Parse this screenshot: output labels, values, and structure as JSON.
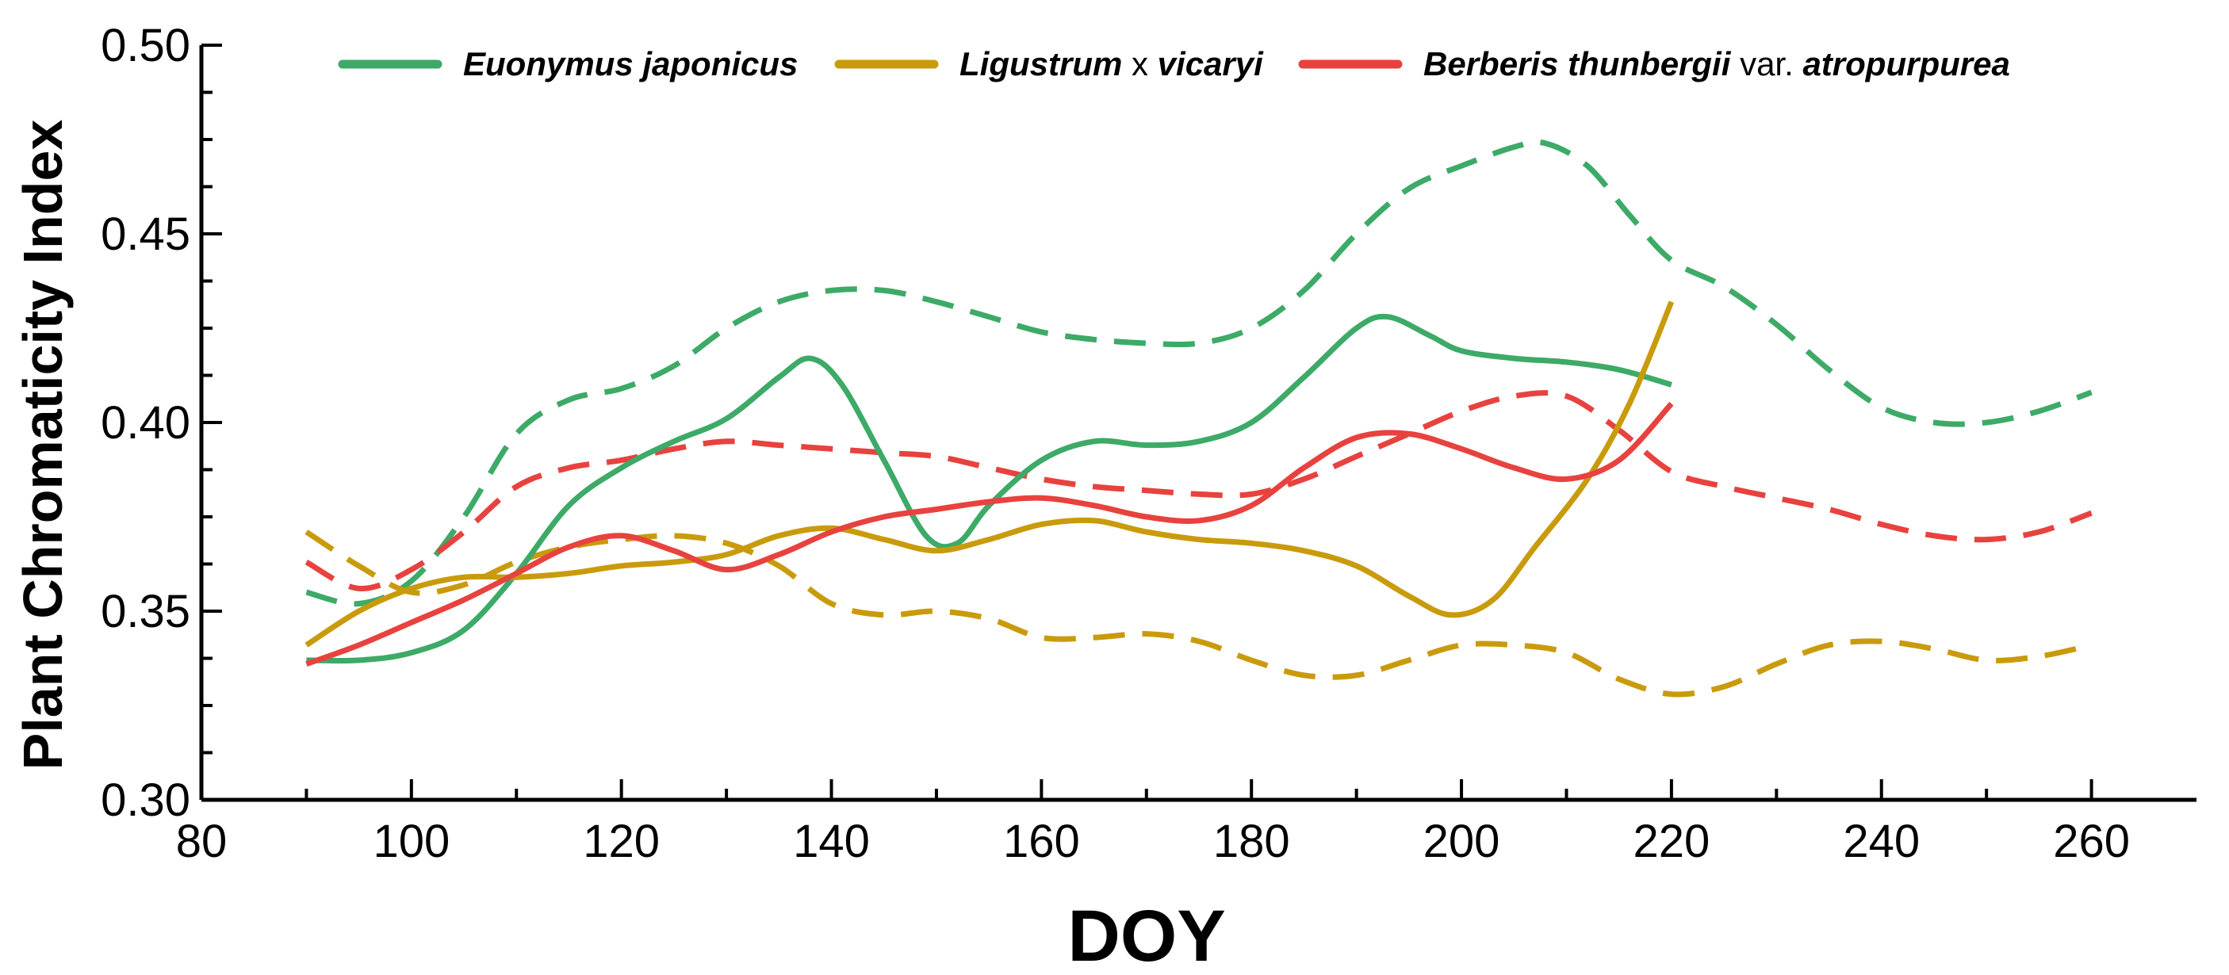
{
  "chart_data": {
    "type": "line",
    "title": "",
    "xlabel": "DOY",
    "ylabel": "Plant Chromaticity Index",
    "xlim": [
      80,
      270
    ],
    "ylim": [
      0.3,
      0.5
    ],
    "xticks": [
      80,
      100,
      120,
      140,
      160,
      180,
      200,
      220,
      240,
      260
    ],
    "xtick_labels": [
      "80",
      "100",
      "120",
      "140",
      "160",
      "180",
      "200",
      "220",
      "240",
      "260"
    ],
    "yticks": [
      0.3,
      0.35,
      0.4,
      0.45,
      0.5
    ],
    "ytick_labels": [
      "0.30",
      "0.35",
      "0.40",
      "0.45",
      "0.50"
    ],
    "grid": false,
    "legend_position": "top",
    "legend": [
      {
        "parts": [
          {
            "text": "Euonymus japonicus",
            "italic": true
          }
        ],
        "color": "#3daa67"
      },
      {
        "parts": [
          {
            "text": "Ligustrum",
            "italic": true
          },
          {
            "text": " x ",
            "italic": false
          },
          {
            "text": "vicaryi",
            "italic": true
          }
        ],
        "color": "#c99b0c"
      },
      {
        "parts": [
          {
            "text": "Berberis thunbergii",
            "italic": true
          },
          {
            "text": " var. ",
            "italic": false
          },
          {
            "text": "atropurpurea",
            "italic": true
          }
        ],
        "color": "#e8423f"
      }
    ],
    "series": [
      {
        "name": "Euonymus japonicus (solid)",
        "color": "#3daa67",
        "dash": false,
        "points": [
          [
            90,
            0.337
          ],
          [
            95,
            0.337
          ],
          [
            100,
            0.339
          ],
          [
            105,
            0.345
          ],
          [
            110,
            0.36
          ],
          [
            115,
            0.378
          ],
          [
            120,
            0.388
          ],
          [
            125,
            0.395
          ],
          [
            130,
            0.401
          ],
          [
            135,
            0.412
          ],
          [
            138,
            0.417
          ],
          [
            141,
            0.41
          ],
          [
            145,
            0.39
          ],
          [
            149,
            0.37
          ],
          [
            152,
            0.368
          ],
          [
            155,
            0.378
          ],
          [
            160,
            0.39
          ],
          [
            165,
            0.395
          ],
          [
            170,
            0.394
          ],
          [
            175,
            0.395
          ],
          [
            180,
            0.4
          ],
          [
            185,
            0.412
          ],
          [
            190,
            0.425
          ],
          [
            193,
            0.428
          ],
          [
            197,
            0.423
          ],
          [
            200,
            0.419
          ],
          [
            205,
            0.417
          ],
          [
            210,
            0.416
          ],
          [
            215,
            0.414
          ],
          [
            220,
            0.41
          ]
        ]
      },
      {
        "name": "Euonymus japonicus (dashed)",
        "color": "#3daa67",
        "dash": true,
        "points": [
          [
            90,
            0.355
          ],
          [
            95,
            0.352
          ],
          [
            100,
            0.358
          ],
          [
            105,
            0.375
          ],
          [
            110,
            0.397
          ],
          [
            115,
            0.406
          ],
          [
            120,
            0.409
          ],
          [
            125,
            0.415
          ],
          [
            130,
            0.425
          ],
          [
            135,
            0.432
          ],
          [
            140,
            0.435
          ],
          [
            145,
            0.435
          ],
          [
            150,
            0.432
          ],
          [
            155,
            0.428
          ],
          [
            160,
            0.424
          ],
          [
            165,
            0.422
          ],
          [
            170,
            0.421
          ],
          [
            175,
            0.421
          ],
          [
            180,
            0.425
          ],
          [
            185,
            0.435
          ],
          [
            190,
            0.45
          ],
          [
            195,
            0.462
          ],
          [
            200,
            0.468
          ],
          [
            205,
            0.473
          ],
          [
            208,
            0.474
          ],
          [
            212,
            0.468
          ],
          [
            216,
            0.455
          ],
          [
            220,
            0.443
          ],
          [
            225,
            0.436
          ],
          [
            230,
            0.426
          ],
          [
            235,
            0.414
          ],
          [
            240,
            0.404
          ],
          [
            245,
            0.4
          ],
          [
            250,
            0.4
          ],
          [
            255,
            0.403
          ],
          [
            260,
            0.408
          ]
        ]
      },
      {
        "name": "Ligustrum x vicaryi (solid)",
        "color": "#c99b0c",
        "dash": false,
        "points": [
          [
            90,
            0.341
          ],
          [
            95,
            0.35
          ],
          [
            100,
            0.356
          ],
          [
            105,
            0.359
          ],
          [
            110,
            0.359
          ],
          [
            115,
            0.36
          ],
          [
            120,
            0.362
          ],
          [
            125,
            0.363
          ],
          [
            130,
            0.365
          ],
          [
            135,
            0.37
          ],
          [
            140,
            0.372
          ],
          [
            145,
            0.369
          ],
          [
            150,
            0.366
          ],
          [
            155,
            0.369
          ],
          [
            160,
            0.373
          ],
          [
            165,
            0.374
          ],
          [
            170,
            0.371
          ],
          [
            175,
            0.369
          ],
          [
            180,
            0.368
          ],
          [
            185,
            0.366
          ],
          [
            190,
            0.362
          ],
          [
            195,
            0.354
          ],
          [
            199,
            0.349
          ],
          [
            203,
            0.353
          ],
          [
            207,
            0.367
          ],
          [
            212,
            0.385
          ],
          [
            216,
            0.405
          ],
          [
            220,
            0.432
          ]
        ]
      },
      {
        "name": "Ligustrum x vicaryi (dashed)",
        "color": "#c99b0c",
        "dash": true,
        "points": [
          [
            90,
            0.371
          ],
          [
            95,
            0.362
          ],
          [
            100,
            0.355
          ],
          [
            105,
            0.357
          ],
          [
            110,
            0.363
          ],
          [
            115,
            0.367
          ],
          [
            120,
            0.369
          ],
          [
            125,
            0.37
          ],
          [
            130,
            0.368
          ],
          [
            135,
            0.362
          ],
          [
            140,
            0.352
          ],
          [
            145,
            0.349
          ],
          [
            150,
            0.35
          ],
          [
            155,
            0.348
          ],
          [
            160,
            0.343
          ],
          [
            165,
            0.343
          ],
          [
            170,
            0.344
          ],
          [
            175,
            0.342
          ],
          [
            180,
            0.337
          ],
          [
            185,
            0.333
          ],
          [
            190,
            0.333
          ],
          [
            195,
            0.337
          ],
          [
            200,
            0.341
          ],
          [
            205,
            0.341
          ],
          [
            210,
            0.339
          ],
          [
            215,
            0.332
          ],
          [
            220,
            0.328
          ],
          [
            225,
            0.33
          ],
          [
            230,
            0.336
          ],
          [
            235,
            0.341
          ],
          [
            240,
            0.342
          ],
          [
            245,
            0.34
          ],
          [
            250,
            0.337
          ],
          [
            255,
            0.338
          ],
          [
            260,
            0.341
          ]
        ]
      },
      {
        "name": "Berberis thunbergii var. atropurpurea (solid)",
        "color": "#e8423f",
        "dash": false,
        "points": [
          [
            90,
            0.336
          ],
          [
            95,
            0.341
          ],
          [
            100,
            0.347
          ],
          [
            105,
            0.353
          ],
          [
            110,
            0.36
          ],
          [
            115,
            0.367
          ],
          [
            120,
            0.37
          ],
          [
            125,
            0.366
          ],
          [
            130,
            0.361
          ],
          [
            135,
            0.365
          ],
          [
            140,
            0.371
          ],
          [
            145,
            0.375
          ],
          [
            150,
            0.377
          ],
          [
            155,
            0.379
          ],
          [
            160,
            0.38
          ],
          [
            165,
            0.378
          ],
          [
            170,
            0.375
          ],
          [
            175,
            0.374
          ],
          [
            180,
            0.378
          ],
          [
            185,
            0.388
          ],
          [
            190,
            0.396
          ],
          [
            195,
            0.397
          ],
          [
            200,
            0.393
          ],
          [
            205,
            0.388
          ],
          [
            210,
            0.385
          ],
          [
            215,
            0.39
          ],
          [
            220,
            0.405
          ]
        ]
      },
      {
        "name": "Berberis thunbergii var. atropurpurea (dashed)",
        "color": "#e8423f",
        "dash": true,
        "points": [
          [
            90,
            0.363
          ],
          [
            95,
            0.356
          ],
          [
            100,
            0.361
          ],
          [
            105,
            0.371
          ],
          [
            110,
            0.383
          ],
          [
            115,
            0.388
          ],
          [
            120,
            0.39
          ],
          [
            125,
            0.393
          ],
          [
            130,
            0.395
          ],
          [
            135,
            0.394
          ],
          [
            140,
            0.393
          ],
          [
            145,
            0.392
          ],
          [
            150,
            0.391
          ],
          [
            155,
            0.388
          ],
          [
            160,
            0.385
          ],
          [
            165,
            0.383
          ],
          [
            170,
            0.382
          ],
          [
            175,
            0.381
          ],
          [
            180,
            0.381
          ],
          [
            185,
            0.385
          ],
          [
            190,
            0.391
          ],
          [
            195,
            0.397
          ],
          [
            200,
            0.403
          ],
          [
            205,
            0.407
          ],
          [
            210,
            0.407
          ],
          [
            215,
            0.398
          ],
          [
            220,
            0.387
          ],
          [
            225,
            0.383
          ],
          [
            230,
            0.38
          ],
          [
            235,
            0.377
          ],
          [
            240,
            0.373
          ],
          [
            245,
            0.37
          ],
          [
            250,
            0.369
          ],
          [
            255,
            0.371
          ],
          [
            260,
            0.376
          ]
        ]
      }
    ]
  }
}
